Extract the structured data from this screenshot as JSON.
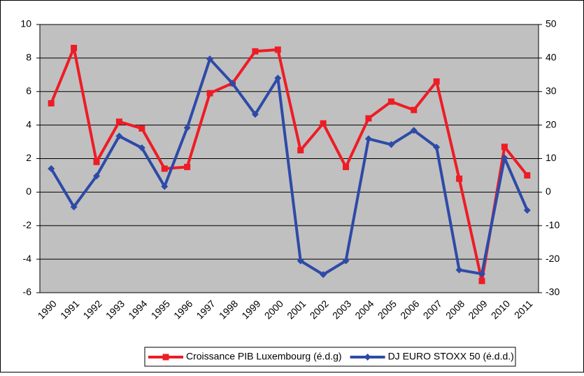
{
  "chart_data": {
    "type": "line",
    "categories": [
      "1990",
      "1991",
      "1992",
      "1993",
      "1994",
      "1995",
      "1996",
      "1997",
      "1998",
      "1999",
      "2000",
      "2001",
      "2002",
      "2003",
      "2004",
      "2005",
      "2006",
      "2007",
      "2008",
      "2009",
      "2010",
      "2011"
    ],
    "series": [
      {
        "name": "Croissance PIB Luxembourg (é.d.g)",
        "color": "#ee1c25",
        "marker": "square",
        "values": [
          5.3,
          8.6,
          1.8,
          4.2,
          3.8,
          1.4,
          1.5,
          5.9,
          6.5,
          8.4,
          8.5,
          2.5,
          4.1,
          1.5,
          4.4,
          5.4,
          4.9,
          6.6,
          0.8,
          -5.3,
          2.7,
          1.0
        ]
      },
      {
        "name": "DJ EURO STOXX 50 (é.d.d.)",
        "color": "#2e4aa8",
        "marker": "diamond",
        "axis": "y2",
        "values": [
          7.0,
          -4.4,
          4.8,
          16.7,
          13.2,
          1.7,
          19.2,
          39.7,
          32.4,
          23.2,
          34.0,
          -20.5,
          -24.6,
          -20.5,
          15.9,
          14.2,
          18.4,
          13.4,
          -23.2,
          -24.4,
          10.2,
          -5.4
        ]
      }
    ],
    "ylim": [
      -6,
      10
    ],
    "yticks": [
      -6,
      -4,
      -2,
      0,
      2,
      4,
      6,
      8,
      10
    ],
    "y2lim": [
      -30,
      50
    ],
    "y2ticks": [
      -30,
      -20,
      -10,
      0,
      10,
      20,
      30,
      40,
      50
    ],
    "grid": true,
    "legend": "bottom"
  }
}
